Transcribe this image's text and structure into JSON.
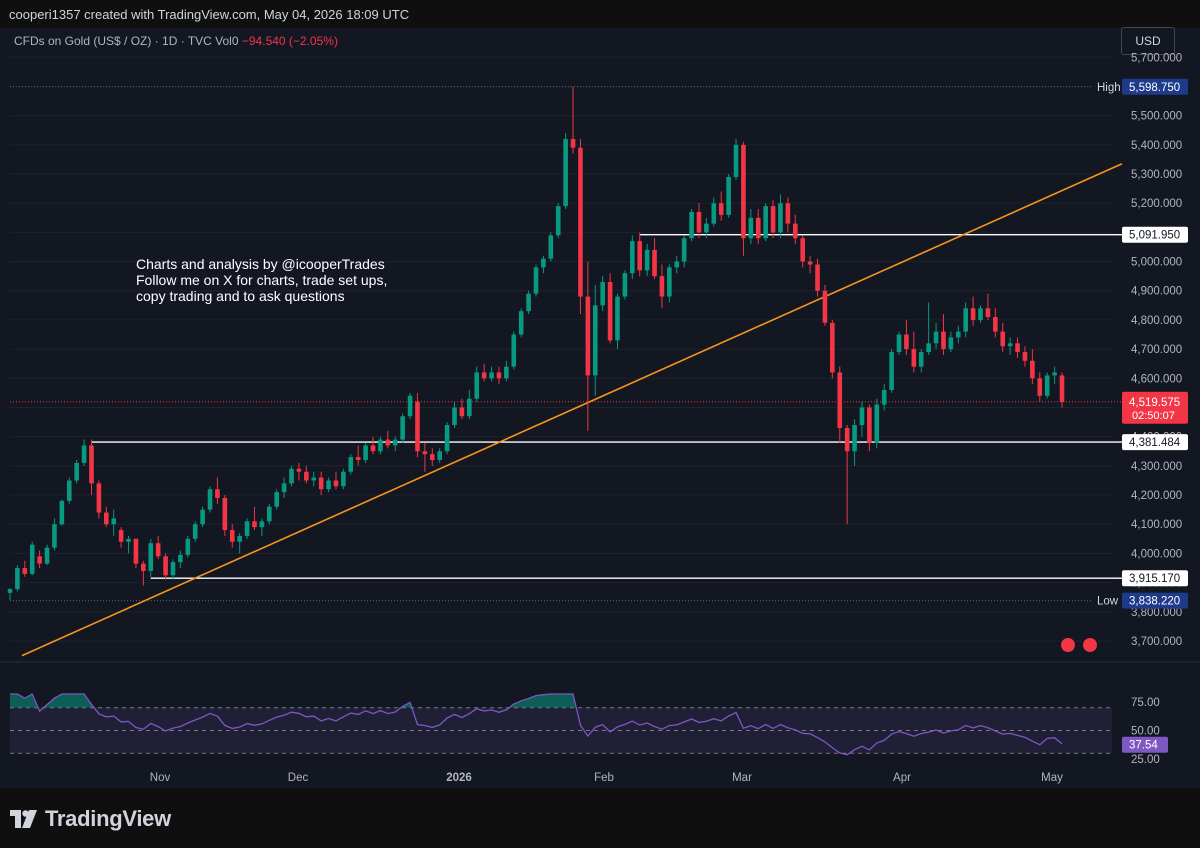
{
  "header": {
    "credit": "cooperi1357 created with TradingView.com, May 04, 2026 18:09 UTC"
  },
  "legend": {
    "symbol": "CFDs on Gold (US$ / OZ) · 1D · TVC",
    "vol_label": "Vol",
    "vol_value": "0",
    "change": "−94.540 (−2.05%)"
  },
  "currency": "USD",
  "annotation": "Charts and analysis by @icooperTrades\nFollow me on X for charts, trade set ups,\ncopy trading and to ask questions",
  "brand": "TradingView",
  "colors": {
    "background": "#131722",
    "up": "#089981",
    "down": "#f23645",
    "trendline": "#f7941d",
    "rsi": "#7e57c2",
    "label_dark": "#1e3a8a"
  },
  "chart_data": {
    "type": "candlestick",
    "ylim": [
      3600,
      5800
    ],
    "y_ticks": [
      "3,700.000",
      "3,800.000",
      "3,900.000",
      "4,000.000",
      "4,100.000",
      "4,200.000",
      "4,300.000",
      "4,400.000",
      "4,500.000",
      "4,600.000",
      "4,700.000",
      "4,800.000",
      "4,900.000",
      "5,000.000",
      "5,100.000",
      "5,200.000",
      "5,300.000",
      "5,400.000",
      "5,500.000",
      "5,600.000",
      "5,700.000"
    ],
    "x_labels": [
      "Nov",
      "Dec",
      "2026",
      "Feb",
      "Mar",
      "Apr",
      "May"
    ],
    "price_labels": [
      {
        "text": "High",
        "value": "5,598.750",
        "y": 5598.75
      },
      {
        "text": "",
        "value": "5,091.950",
        "y": 5091.95
      },
      {
        "text": "",
        "value": "4,519.575",
        "y": 4519.575,
        "sub": "02:50:07"
      },
      {
        "text": "",
        "value": "4,381.484",
        "y": 4381.484
      },
      {
        "text": "",
        "value": "3,915.170",
        "y": 3915.17
      },
      {
        "text": "Low",
        "value": "3,838.220",
        "y": 3838.22
      }
    ],
    "horizontal_levels": [
      {
        "y": 5091.95,
        "from_index": 85
      },
      {
        "y": 4381.484,
        "from_index": 11
      },
      {
        "y": 3915.17,
        "from_index": 19
      }
    ],
    "trendline": {
      "from": [
        0,
        3650
      ],
      "to": [
        152,
        5335
      ]
    },
    "candles": [
      [
        3865,
        3880,
        3840,
        3878
      ],
      [
        3878,
        3960,
        3870,
        3950
      ],
      [
        3950,
        3975,
        3920,
        3930
      ],
      [
        3930,
        4040,
        3925,
        4030
      ],
      [
        3990,
        4010,
        3950,
        3965
      ],
      [
        3965,
        4030,
        3960,
        4020
      ],
      [
        4020,
        4120,
        4010,
        4100
      ],
      [
        4100,
        4185,
        4095,
        4180
      ],
      [
        4180,
        4260,
        4170,
        4250
      ],
      [
        4250,
        4320,
        4240,
        4310
      ],
      [
        4310,
        4390,
        4300,
        4370
      ],
      [
        4370,
        4390,
        4200,
        4240
      ],
      [
        4240,
        4250,
        4120,
        4140
      ],
      [
        4140,
        4160,
        4090,
        4100
      ],
      [
        4100,
        4150,
        4060,
        4120
      ],
      [
        4080,
        4090,
        4020,
        4040
      ],
      [
        4040,
        4060,
        4000,
        4050
      ],
      [
        4050,
        4050,
        3950,
        3965
      ],
      [
        3965,
        3975,
        3890,
        3940
      ],
      [
        3940,
        4050,
        3920,
        4035
      ],
      [
        4035,
        4060,
        3980,
        3990
      ],
      [
        3990,
        4000,
        3910,
        3925
      ],
      [
        3925,
        3980,
        3910,
        3970
      ],
      [
        3970,
        4010,
        3950,
        3995
      ],
      [
        3995,
        4060,
        3985,
        4050
      ],
      [
        4050,
        4110,
        4040,
        4100
      ],
      [
        4100,
        4160,
        4090,
        4150
      ],
      [
        4150,
        4230,
        4140,
        4220
      ],
      [
        4220,
        4260,
        4170,
        4190
      ],
      [
        4190,
        4200,
        4060,
        4080
      ],
      [
        4080,
        4100,
        4020,
        4040
      ],
      [
        4040,
        4070,
        4000,
        4060
      ],
      [
        4060,
        4120,
        4050,
        4110
      ],
      [
        4110,
        4160,
        4080,
        4090
      ],
      [
        4090,
        4120,
        4060,
        4110
      ],
      [
        4110,
        4170,
        4100,
        4160
      ],
      [
        4160,
        4220,
        4150,
        4210
      ],
      [
        4210,
        4260,
        4190,
        4240
      ],
      [
        4240,
        4300,
        4230,
        4290
      ],
      [
        4290,
        4310,
        4250,
        4280
      ],
      [
        4280,
        4300,
        4240,
        4250
      ],
      [
        4250,
        4280,
        4230,
        4260
      ],
      [
        4260,
        4280,
        4200,
        4220
      ],
      [
        4220,
        4260,
        4210,
        4250
      ],
      [
        4250,
        4280,
        4220,
        4230
      ],
      [
        4230,
        4290,
        4220,
        4280
      ],
      [
        4280,
        4340,
        4270,
        4330
      ],
      [
        4330,
        4370,
        4300,
        4320
      ],
      [
        4320,
        4380,
        4310,
        4370
      ],
      [
        4370,
        4400,
        4340,
        4350
      ],
      [
        4350,
        4400,
        4340,
        4390
      ],
      [
        4390,
        4420,
        4360,
        4370
      ],
      [
        4370,
        4400,
        4350,
        4390
      ],
      [
        4390,
        4480,
        4380,
        4470
      ],
      [
        4470,
        4550,
        4460,
        4540
      ],
      [
        4520,
        4550,
        4330,
        4350
      ],
      [
        4350,
        4380,
        4280,
        4340
      ],
      [
        4340,
        4360,
        4300,
        4320
      ],
      [
        4320,
        4360,
        4310,
        4350
      ],
      [
        4350,
        4450,
        4340,
        4440
      ],
      [
        4440,
        4520,
        4430,
        4500
      ],
      [
        4500,
        4530,
        4460,
        4470
      ],
      [
        4470,
        4560,
        4460,
        4530
      ],
      [
        4530,
        4640,
        4520,
        4620
      ],
      [
        4620,
        4650,
        4590,
        4600
      ],
      [
        4600,
        4640,
        4590,
        4620
      ],
      [
        4620,
        4640,
        4580,
        4600
      ],
      [
        4600,
        4660,
        4590,
        4640
      ],
      [
        4640,
        4760,
        4630,
        4750
      ],
      [
        4750,
        4840,
        4740,
        4830
      ],
      [
        4830,
        4900,
        4820,
        4890
      ],
      [
        4890,
        4990,
        4880,
        4980
      ],
      [
        4980,
        5020,
        4960,
        5010
      ],
      [
        5010,
        5100,
        5000,
        5090
      ],
      [
        5090,
        5200,
        5080,
        5190
      ],
      [
        5190,
        5440,
        5180,
        5420
      ],
      [
        5420,
        5598,
        5370,
        5390
      ],
      [
        5390,
        5420,
        4820,
        4880
      ],
      [
        4880,
        5000,
        4420,
        4610
      ],
      [
        4610,
        4920,
        4540,
        4850
      ],
      [
        4850,
        4950,
        4830,
        4930
      ],
      [
        4930,
        4960,
        4720,
        4730
      ],
      [
        4730,
        4890,
        4700,
        4880
      ],
      [
        4880,
        4970,
        4870,
        4960
      ],
      [
        4960,
        5090,
        4940,
        5070
      ],
      [
        5070,
        5100,
        4950,
        4970
      ],
      [
        4970,
        5060,
        4950,
        5040
      ],
      [
        5040,
        5080,
        4940,
        4950
      ],
      [
        4950,
        4990,
        4840,
        4880
      ],
      [
        4880,
        4990,
        4860,
        4980
      ],
      [
        4980,
        5020,
        4960,
        5000
      ],
      [
        5000,
        5090,
        4980,
        5080
      ],
      [
        5080,
        5180,
        5070,
        5170
      ],
      [
        5170,
        5200,
        5080,
        5100
      ],
      [
        5100,
        5150,
        5080,
        5130
      ],
      [
        5130,
        5220,
        5120,
        5200
      ],
      [
        5200,
        5240,
        5140,
        5160
      ],
      [
        5160,
        5300,
        5150,
        5290
      ],
      [
        5290,
        5420,
        5280,
        5400
      ],
      [
        5400,
        5410,
        5020,
        5080
      ],
      [
        5080,
        5180,
        5060,
        5150
      ],
      [
        5150,
        5180,
        5060,
        5080
      ],
      [
        5080,
        5200,
        5070,
        5190
      ],
      [
        5190,
        5210,
        5080,
        5100
      ],
      [
        5100,
        5230,
        5080,
        5200
      ],
      [
        5200,
        5220,
        5100,
        5130
      ],
      [
        5130,
        5160,
        5060,
        5080
      ],
      [
        5080,
        5090,
        4980,
        5000
      ],
      [
        5000,
        5020,
        4960,
        4990
      ],
      [
        4990,
        5010,
        4880,
        4900
      ],
      [
        4900,
        4920,
        4780,
        4790
      ],
      [
        4790,
        4800,
        4600,
        4620
      ],
      [
        4620,
        4640,
        4380,
        4430
      ],
      [
        4430,
        4440,
        4100,
        4350
      ],
      [
        4350,
        4460,
        4300,
        4440
      ],
      [
        4440,
        4520,
        4400,
        4500
      ],
      [
        4500,
        4510,
        4350,
        4380
      ],
      [
        4380,
        4530,
        4360,
        4510
      ],
      [
        4510,
        4580,
        4490,
        4560
      ],
      [
        4560,
        4700,
        4550,
        4690
      ],
      [
        4690,
        4760,
        4680,
        4750
      ],
      [
        4750,
        4800,
        4680,
        4700
      ],
      [
        4700,
        4760,
        4620,
        4640
      ],
      [
        4640,
        4700,
        4620,
        4690
      ],
      [
        4690,
        4860,
        4680,
        4720
      ],
      [
        4720,
        4790,
        4700,
        4760
      ],
      [
        4760,
        4820,
        4680,
        4700
      ],
      [
        4700,
        4760,
        4690,
        4740
      ],
      [
        4740,
        4780,
        4720,
        4760
      ],
      [
        4760,
        4860,
        4740,
        4840
      ],
      [
        4840,
        4880,
        4780,
        4800
      ],
      [
        4800,
        4850,
        4790,
        4840
      ],
      [
        4840,
        4890,
        4800,
        4810
      ],
      [
        4810,
        4840,
        4740,
        4760
      ],
      [
        4760,
        4790,
        4690,
        4710
      ],
      [
        4710,
        4740,
        4680,
        4720
      ],
      [
        4720,
        4740,
        4670,
        4690
      ],
      [
        4690,
        4710,
        4640,
        4660
      ],
      [
        4660,
        4700,
        4580,
        4600
      ],
      [
        4600,
        4620,
        4520,
        4540
      ],
      [
        4540,
        4620,
        4530,
        4610
      ],
      [
        4610,
        4640,
        4580,
        4620
      ],
      [
        4610,
        4620,
        4500,
        4519
      ]
    ],
    "rsi": {
      "yticks": [
        "75.00",
        "50.00",
        "25.00"
      ],
      "levels": [
        70,
        50,
        30
      ],
      "last_value": "37.54"
    }
  }
}
